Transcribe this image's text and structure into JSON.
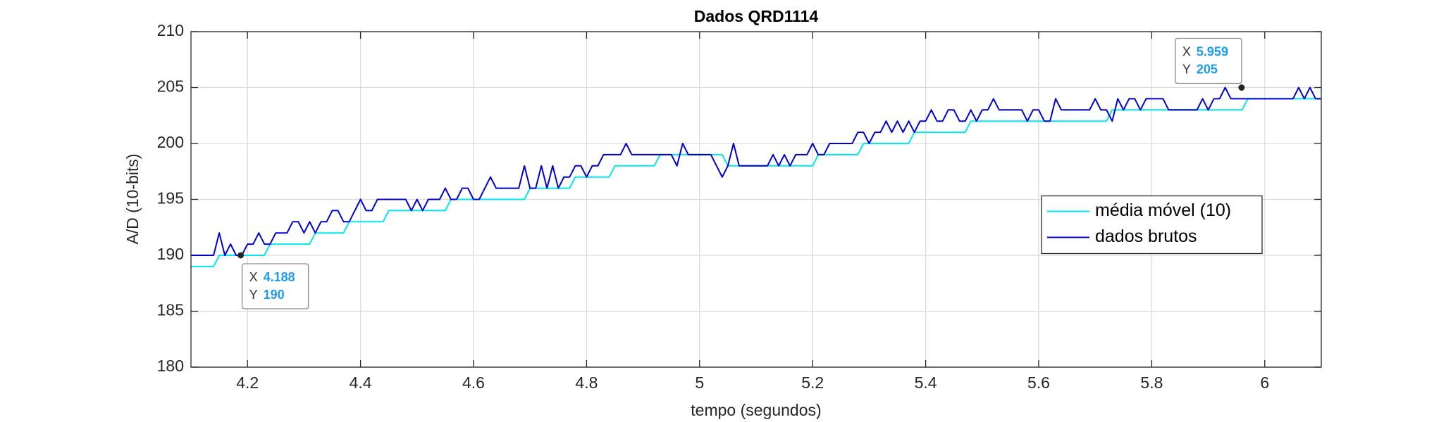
{
  "chart_data": {
    "type": "line",
    "title": "Dados QRD1114",
    "xlabel": "tempo (segundos)",
    "ylabel": "A/D (10-bits)",
    "x": [
      4.1,
      4.11,
      4.12,
      4.13,
      4.14,
      4.15,
      4.16,
      4.17,
      4.18,
      4.19,
      4.2,
      4.21,
      4.22,
      4.23,
      4.24,
      4.25,
      4.26,
      4.27,
      4.28,
      4.29,
      4.3,
      4.31,
      4.32,
      4.33,
      4.34,
      4.35,
      4.36,
      4.37,
      4.38,
      4.39,
      4.4,
      4.41,
      4.42,
      4.43,
      4.44,
      4.45,
      4.46,
      4.47,
      4.48,
      4.49,
      4.5,
      4.51,
      4.52,
      4.53,
      4.54,
      4.55,
      4.56,
      4.57,
      4.58,
      4.59,
      4.6,
      4.61,
      4.62,
      4.63,
      4.64,
      4.65,
      4.66,
      4.67,
      4.68,
      4.69,
      4.7,
      4.71,
      4.72,
      4.73,
      4.74,
      4.75,
      4.76,
      4.77,
      4.78,
      4.79,
      4.8,
      4.81,
      4.82,
      4.83,
      4.84,
      4.85,
      4.86,
      4.87,
      4.88,
      4.89,
      4.9,
      4.91,
      4.92,
      4.93,
      4.94,
      4.95,
      4.96,
      4.97,
      4.98,
      4.99,
      5.0,
      5.01,
      5.02,
      5.03,
      5.04,
      5.05,
      5.06,
      5.07,
      5.08,
      5.09,
      5.1,
      5.11,
      5.12,
      5.13,
      5.14,
      5.15,
      5.16,
      5.17,
      5.18,
      5.19,
      5.2,
      5.21,
      5.22,
      5.23,
      5.24,
      5.25,
      5.26,
      5.27,
      5.28,
      5.29,
      5.3,
      5.31,
      5.32,
      5.33,
      5.34,
      5.35,
      5.36,
      5.37,
      5.38,
      5.39,
      5.4,
      5.41,
      5.42,
      5.43,
      5.44,
      5.45,
      5.46,
      5.47,
      5.48,
      5.49,
      5.5,
      5.51,
      5.52,
      5.53,
      5.54,
      5.55,
      5.56,
      5.57,
      5.58,
      5.59,
      5.6,
      5.61,
      5.62,
      5.63,
      5.64,
      5.65,
      5.66,
      5.67,
      5.68,
      5.69,
      5.7,
      5.71,
      5.72,
      5.73,
      5.74,
      5.75,
      5.76,
      5.77,
      5.78,
      5.79,
      5.8,
      5.81,
      5.82,
      5.83,
      5.84,
      5.85,
      5.86,
      5.87,
      5.88,
      5.89,
      5.9,
      5.91,
      5.92,
      5.93,
      5.94,
      5.95,
      5.96,
      5.97,
      5.98,
      5.99,
      6.0,
      6.01,
      6.02,
      6.03,
      6.04,
      6.05,
      6.06,
      6.07,
      6.08,
      6.09,
      6.1
    ],
    "series": [
      {
        "name": "média móvel (10)",
        "color": "#00e8f0",
        "values": [
          189,
          189,
          189,
          189,
          189,
          190,
          190,
          190,
          190,
          190,
          190,
          190,
          190,
          190,
          191,
          191,
          191,
          191,
          191,
          191,
          191,
          191,
          192,
          192,
          192,
          192,
          192,
          192,
          193,
          193,
          193,
          193,
          193,
          193,
          193,
          194,
          194,
          194,
          194,
          194,
          194,
          194,
          194,
          194,
          194,
          194,
          195,
          195,
          195,
          195,
          195,
          195,
          195,
          195,
          195,
          195,
          195,
          195,
          195,
          195,
          196,
          196,
          196,
          196,
          196,
          196,
          196,
          196,
          197,
          197,
          197,
          197,
          197,
          197,
          197,
          198,
          198,
          198,
          198,
          198,
          198,
          198,
          198,
          199,
          199,
          199,
          199,
          199,
          199,
          199,
          199,
          199,
          199,
          199,
          199,
          198,
          198,
          198,
          198,
          198,
          198,
          198,
          198,
          198,
          198,
          198,
          198,
          198,
          198,
          198,
          198,
          199,
          199,
          199,
          199,
          199,
          199,
          199,
          199,
          200,
          200,
          200,
          200,
          200,
          200,
          200,
          200,
          200,
          201,
          201,
          201,
          201,
          201,
          201,
          201,
          201,
          201,
          201,
          202,
          202,
          202,
          202,
          202,
          202,
          202,
          202,
          202,
          202,
          202,
          202,
          202,
          202,
          202,
          202,
          202,
          202,
          202,
          202,
          202,
          202,
          202,
          202,
          202,
          203,
          203,
          203,
          203,
          203,
          203,
          203,
          203,
          203,
          203,
          203,
          203,
          203,
          203,
          203,
          203,
          203,
          203,
          203,
          203,
          203,
          203,
          203,
          203,
          204,
          204,
          204,
          204,
          204,
          204,
          204,
          204,
          204,
          204,
          204,
          204,
          204,
          204
        ]
      },
      {
        "name": "dados brutos",
        "color": "#0000d0",
        "values": [
          190,
          190,
          190,
          190,
          190,
          192,
          190,
          191,
          190,
          190,
          191,
          191,
          192,
          191,
          191,
          192,
          192,
          192,
          193,
          193,
          192,
          193,
          192,
          193,
          193,
          194,
          194,
          193,
          193,
          194,
          195,
          194,
          194,
          195,
          195,
          195,
          195,
          195,
          195,
          194,
          195,
          194,
          195,
          195,
          195,
          196,
          195,
          195,
          196,
          196,
          195,
          195,
          196,
          197,
          196,
          196,
          196,
          196,
          196,
          198,
          196,
          196,
          198,
          196,
          198,
          196,
          197,
          197,
          198,
          198,
          197,
          198,
          198,
          199,
          199,
          199,
          199,
          200,
          199,
          199,
          199,
          199,
          199,
          199,
          199,
          199,
          198,
          200,
          199,
          199,
          199,
          199,
          199,
          198,
          197,
          198,
          200,
          198,
          198,
          198,
          198,
          198,
          198,
          199,
          198,
          199,
          198,
          199,
          199,
          199,
          200,
          199,
          199,
          200,
          200,
          200,
          200,
          200,
          201,
          201,
          200,
          201,
          201,
          202,
          201,
          202,
          201,
          202,
          201,
          202,
          202,
          203,
          202,
          202,
          203,
          203,
          202,
          202,
          203,
          202,
          203,
          203,
          204,
          203,
          203,
          203,
          203,
          203,
          202,
          203,
          203,
          202,
          202,
          204,
          203,
          203,
          203,
          203,
          203,
          203,
          204,
          203,
          203,
          202,
          204,
          203,
          204,
          204,
          203,
          204,
          204,
          204,
          204,
          203,
          203,
          203,
          203,
          203,
          203,
          204,
          203,
          204,
          204,
          205,
          204,
          204,
          204,
          204,
          204,
          204,
          204,
          204,
          204,
          204,
          204,
          204,
          205,
          204,
          205,
          204,
          204
        ]
      }
    ],
    "xlim": [
      4.1,
      6.1
    ],
    "xticks": [
      4.2,
      4.4,
      4.6,
      4.8,
      5,
      5.2,
      5.4,
      5.6,
      5.8,
      6
    ],
    "ylim": [
      180,
      210
    ],
    "yticks": [
      180,
      185,
      190,
      195,
      200,
      205,
      210
    ],
    "grid": true,
    "legend_position": "east",
    "annotations": [
      {
        "x_label": "X",
        "x": 4.188,
        "y_label": "Y",
        "y": 190
      },
      {
        "x_label": "X",
        "x": 5.959,
        "y_label": "Y",
        "y": 205
      }
    ]
  }
}
